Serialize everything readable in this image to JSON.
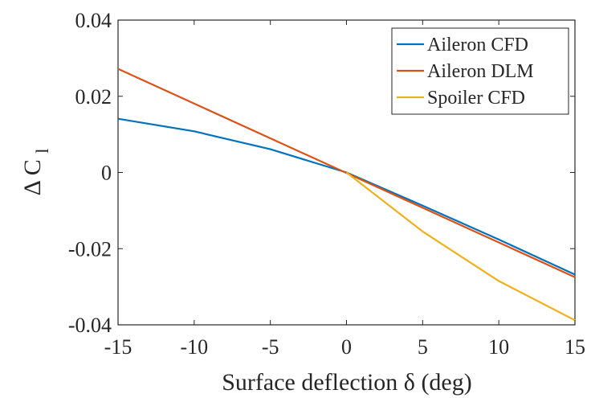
{
  "chart_data": {
    "type": "line",
    "title": "",
    "xlabel": "Surface deflection δ (deg)",
    "ylabel": "Δ C",
    "ylabel_subscript": "l",
    "xlim": [
      -15,
      15
    ],
    "ylim": [
      -0.04,
      0.04
    ],
    "x_ticks": [
      -15,
      -10,
      -5,
      0,
      5,
      10,
      15
    ],
    "x_tick_labels": [
      "-15",
      "-10",
      "-5",
      "0",
      "5",
      "10",
      "15"
    ],
    "y_ticks": [
      -0.04,
      -0.02,
      0,
      0.02,
      0.04
    ],
    "y_tick_labels": [
      "-0.04",
      "-0.02",
      "0",
      "0.02",
      "0.04"
    ],
    "grid": false,
    "legend_position": "top-right",
    "series": [
      {
        "name": "Aileron CFD",
        "color": "#0072BD",
        "x": [
          -15,
          -10,
          -5,
          0,
          5,
          10,
          15
        ],
        "y": [
          0.0141,
          0.0108,
          0.0061,
          0.0,
          -0.0087,
          -0.0176,
          -0.0268
        ]
      },
      {
        "name": "Aileron DLM",
        "color": "#D95319",
        "x": [
          -15,
          15
        ],
        "y": [
          0.0272,
          -0.0275
        ]
      },
      {
        "name": "Spoiler CFD",
        "color": "#EDB120",
        "x": [
          0,
          5,
          10,
          15
        ],
        "y": [
          0.0,
          -0.0155,
          -0.0285,
          -0.0388
        ]
      }
    ]
  }
}
